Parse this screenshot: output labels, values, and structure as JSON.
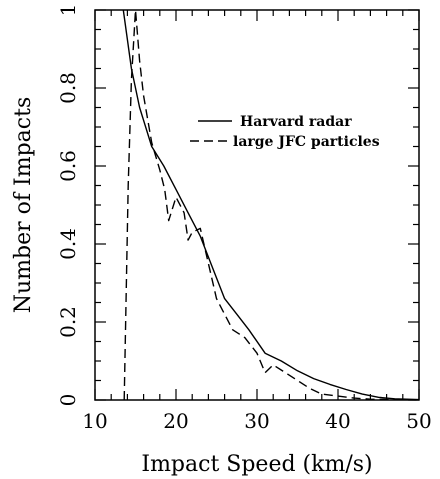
{
  "chart_data": {
    "type": "line",
    "title": "",
    "xlabel": "Impact Speed (km/s)",
    "ylabel": "Number of Impacts",
    "xlim": [
      10,
      50
    ],
    "ylim": [
      0,
      1
    ],
    "x_ticks": [
      "10",
      "20",
      "30",
      "40",
      "50"
    ],
    "y_ticks": [
      "0",
      "0.2",
      "0.4",
      "0.6",
      "0.8",
      "1"
    ],
    "legend_position": "right, middle-upper",
    "grid": false,
    "series": [
      {
        "name": "Harvard radar",
        "style": "solid",
        "x": [
          13.5,
          14.5,
          15.5,
          17,
          18.5,
          20,
          21.5,
          23,
          24.5,
          26,
          27.5,
          29,
          31,
          33,
          35,
          37,
          39,
          41,
          43,
          45,
          47,
          50
        ],
        "y": [
          1.0,
          0.85,
          0.75,
          0.65,
          0.6,
          0.54,
          0.48,
          0.42,
          0.34,
          0.26,
          0.22,
          0.18,
          0.12,
          0.1,
          0.075,
          0.055,
          0.04,
          0.027,
          0.015,
          0.007,
          0.003,
          0.001
        ]
      },
      {
        "name": "large JFC particles",
        "style": "dashed",
        "x": [
          13.6,
          14.1,
          14.5,
          15.0,
          15.5,
          16.0,
          17.0,
          18.0,
          18.6,
          19.1,
          20.0,
          21.0,
          21.5,
          22.0,
          23.0,
          24.0,
          25.0,
          26.0,
          27.0,
          28.5,
          30.0,
          31.0,
          32.0,
          33.5,
          35.0,
          36.5,
          38.0,
          40.0,
          42.0,
          44.0,
          47.0,
          50.0
        ],
        "y": [
          0.0,
          0.55,
          0.82,
          1.0,
          0.87,
          0.78,
          0.66,
          0.59,
          0.54,
          0.46,
          0.52,
          0.48,
          0.41,
          0.43,
          0.44,
          0.35,
          0.26,
          0.22,
          0.18,
          0.16,
          0.12,
          0.07,
          0.09,
          0.07,
          0.05,
          0.03,
          0.015,
          0.01,
          0.005,
          0.002,
          0.001,
          0.0
        ]
      }
    ]
  }
}
